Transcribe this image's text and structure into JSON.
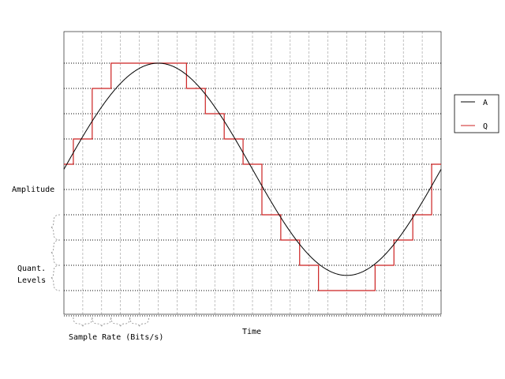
{
  "chart_data": {
    "type": "line",
    "title": "",
    "xlabel": "Time",
    "ylabel": "Amplitude",
    "xlim": [
      0,
      20
    ],
    "ylim": [
      -6,
      5
    ],
    "grid": true,
    "legend_position": "right",
    "annotations": {
      "quant_levels": [
        "Quant.",
        "Levels"
      ],
      "sample_rate": "Sample Rate (Bits/s)"
    },
    "series": [
      {
        "name": "A",
        "color": "#000000",
        "style": "sine",
        "amplitude": 4.2,
        "period": 20,
        "offset": -0.2
      },
      {
        "name": "Q",
        "color": "#cc2222",
        "style": "step",
        "x": [
          0,
          0.5,
          1.5,
          2.5,
          6.5,
          7.5,
          8.5,
          9.5,
          10.5,
          11.5,
          12.5,
          13.5,
          14.5,
          16.5,
          17.5,
          18.5,
          19.5,
          20
        ],
        "values": [
          0,
          1,
          3,
          4,
          3,
          2,
          1,
          0,
          -2,
          -3,
          -4,
          -5,
          -5,
          -4,
          -3,
          -2,
          0,
          0
        ]
      }
    ]
  }
}
